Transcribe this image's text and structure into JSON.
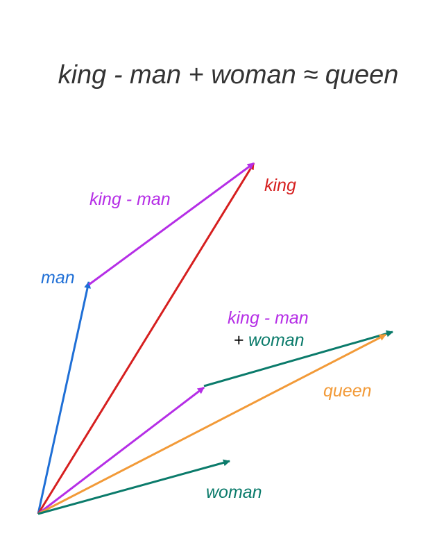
{
  "title": "king - man + woman ≈ queen",
  "labels": {
    "king": "king",
    "man": "man",
    "king_minus_man": "king - man",
    "king_minus_man_2": "king - man",
    "plus": "+",
    "woman_in_sum": "woman",
    "queen": "queen",
    "woman": "woman"
  },
  "colors": {
    "title": "#333333",
    "man": "#1f6fd6",
    "king": "#d61f1f",
    "king_minus_man": "#b52ee6",
    "woman": "#0b7b6b",
    "queen": "#f29a38",
    "plus": "#000000"
  }
}
